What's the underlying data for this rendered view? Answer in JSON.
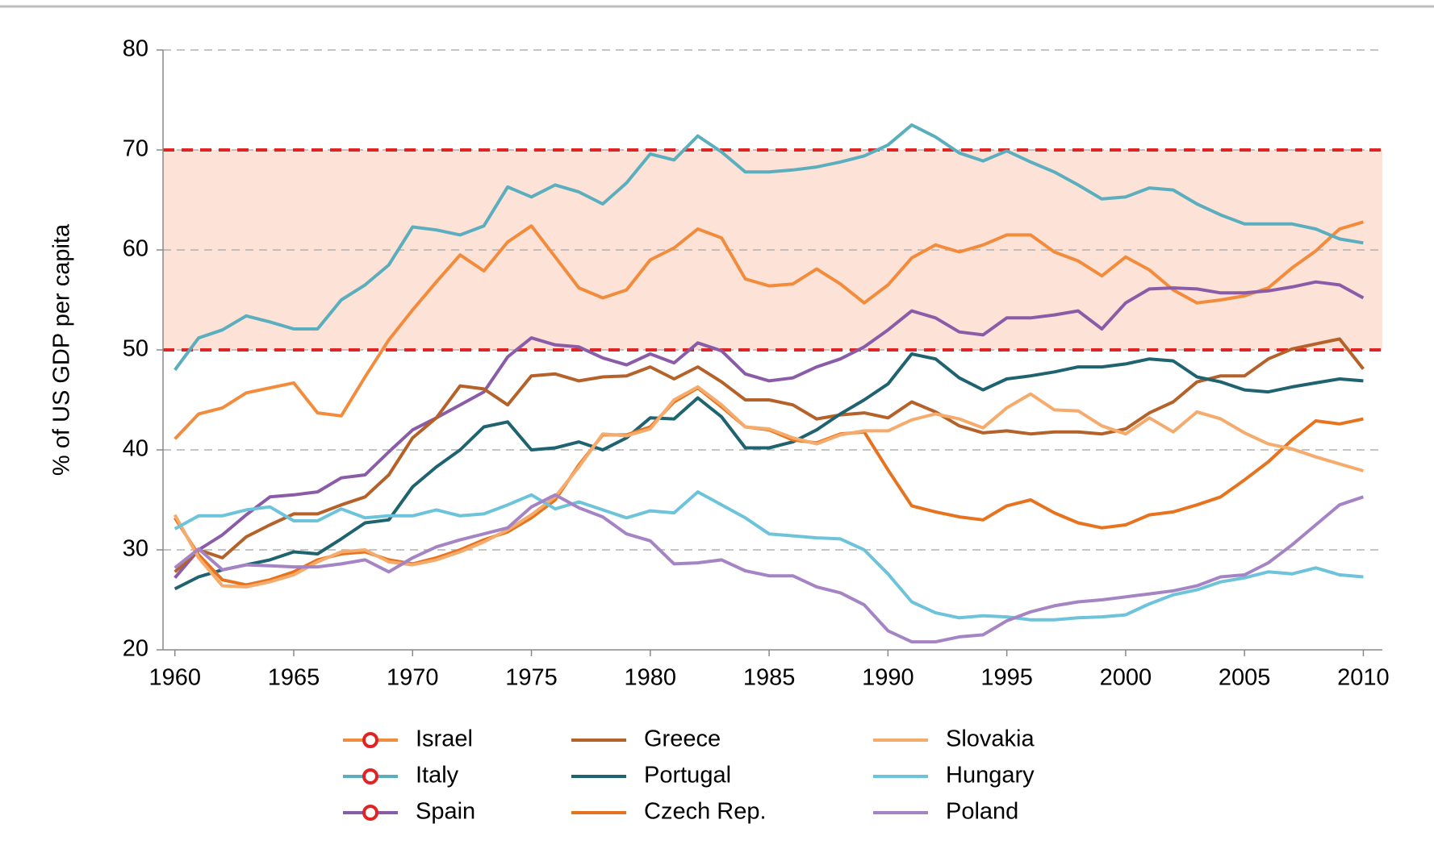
{
  "chart_data": {
    "type": "line",
    "y_label": "% of US GDP per capita",
    "x": [
      1960,
      1961,
      1962,
      1963,
      1964,
      1965,
      1966,
      1967,
      1968,
      1969,
      1970,
      1971,
      1972,
      1973,
      1974,
      1975,
      1976,
      1977,
      1978,
      1979,
      1980,
      1981,
      1982,
      1983,
      1984,
      1985,
      1986,
      1987,
      1988,
      1989,
      1990,
      1991,
      1992,
      1993,
      1994,
      1995,
      1996,
      1997,
      1998,
      1999,
      2000,
      2001,
      2002,
      2003,
      2004,
      2005,
      2006,
      2007,
      2008,
      2009,
      2010
    ],
    "xlim": [
      1959.5,
      2010.8
    ],
    "xticks": [
      1960,
      1965,
      1970,
      1975,
      1980,
      1985,
      1990,
      1995,
      2000,
      2005,
      2010
    ],
    "ylim": [
      20,
      80
    ],
    "yticks": [
      20,
      30,
      40,
      50,
      60,
      70,
      80
    ],
    "grid": true,
    "shaded_range": [
      50,
      70
    ],
    "shaded_color": "#fde2d7",
    "range_line_color": "#e02424",
    "legend_position": "bottom",
    "series": [
      {
        "name": "Israel",
        "color": "#f28c3c",
        "marker": "circle",
        "values": [
          41.1,
          43.6,
          44.2,
          45.7,
          46.2,
          46.7,
          43.7,
          43.4,
          47.3,
          51,
          54,
          56.8,
          59.5,
          57.9,
          60.8,
          62.4,
          59.3,
          56.2,
          55.2,
          56,
          59,
          60.2,
          62.1,
          61.2,
          57.1,
          56.4,
          56.6,
          58.1,
          56.6,
          54.7,
          56.5,
          59.2,
          60.5,
          59.8,
          60.5,
          61.5,
          61.5,
          59.8,
          58.9,
          57.4,
          59.3,
          58,
          56,
          54.7,
          55,
          55.4,
          56.2,
          58.2,
          59.9,
          62.1,
          62.8
        ]
      },
      {
        "name": "Italy",
        "color": "#5aaebd",
        "marker": "circle",
        "values": [
          48,
          51.2,
          52,
          53.4,
          52.8,
          52.1,
          52.1,
          55,
          56.5,
          58.5,
          62.3,
          62,
          61.5,
          62.4,
          66.3,
          65.3,
          66.5,
          65.8,
          64.6,
          66.7,
          69.6,
          69,
          71.4,
          69.8,
          67.8,
          67.8,
          68,
          68.3,
          68.8,
          69.4,
          70.5,
          72.5,
          71.3,
          69.7,
          68.9,
          69.9,
          68.8,
          67.8,
          66.5,
          65.1,
          65.3,
          66.2,
          66,
          64.6,
          63.5,
          62.6,
          62.6,
          62.6,
          62.1,
          61.1,
          60.7
        ]
      },
      {
        "name": "Spain",
        "color": "#8a5ca8",
        "marker": "circle",
        "values": [
          27.2,
          30,
          31.5,
          33.5,
          35.3,
          35.5,
          35.8,
          37.2,
          37.5,
          39.8,
          42,
          43.2,
          44.5,
          45.8,
          49.3,
          51.2,
          50.5,
          50.3,
          49.2,
          48.5,
          49.6,
          48.7,
          50.7,
          49.9,
          47.6,
          46.9,
          47.2,
          48.3,
          49.1,
          50.3,
          52,
          53.9,
          53.2,
          51.8,
          51.5,
          53.2,
          53.2,
          53.5,
          53.9,
          52.1,
          54.7,
          56.1,
          56.2,
          56.1,
          55.7,
          55.7,
          55.9,
          56.3,
          56.8,
          56.5,
          55.2
        ]
      },
      {
        "name": "Greece",
        "color": "#b5622a",
        "values": [
          27.8,
          30,
          29.2,
          31.3,
          32.5,
          33.6,
          33.6,
          34.5,
          35.3,
          37.5,
          41.2,
          43.2,
          46.4,
          46.1,
          44.5,
          47.4,
          47.6,
          46.9,
          47.3,
          47.4,
          48.3,
          47.1,
          48.3,
          46.8,
          45,
          45,
          44.5,
          43.1,
          43.5,
          43.7,
          43.2,
          44.8,
          43.8,
          42.4,
          41.7,
          41.9,
          41.6,
          41.8,
          41.8,
          41.6,
          42.1,
          43.7,
          44.8,
          46.8,
          47.4,
          47.4,
          49.1,
          50.1,
          50.6,
          51.1,
          48.1
        ]
      },
      {
        "name": "Portugal",
        "color": "#1f6270",
        "values": [
          26.1,
          27.3,
          28,
          28.5,
          29,
          29.8,
          29.6,
          31.1,
          32.7,
          33,
          36.3,
          38.3,
          40,
          42.3,
          42.8,
          40,
          40.2,
          40.8,
          40,
          41.2,
          43.2,
          43.1,
          45.2,
          43.3,
          40.2,
          40.2,
          40.8,
          42,
          43.6,
          45,
          46.6,
          49.6,
          49.1,
          47.2,
          46,
          47.1,
          47.4,
          47.8,
          48.3,
          48.3,
          48.6,
          49.1,
          48.9,
          47.3,
          46.8,
          46,
          45.8,
          46.3,
          46.7,
          47.1,
          46.9
        ]
      },
      {
        "name": "Czech Rep.",
        "color": "#e8731e",
        "values": [
          33.2,
          29.5,
          27,
          26.5,
          27,
          27.8,
          29,
          29.6,
          29.8,
          29,
          28.6,
          29.2,
          30,
          31,
          31.8,
          33.2,
          35,
          38.5,
          41.5,
          41.5,
          42.3,
          44.8,
          46.2,
          44.3,
          42.3,
          42,
          41,
          40.7,
          41.6,
          41.8,
          38,
          34.4,
          33.8,
          33.3,
          33,
          34.4,
          35,
          33.7,
          32.7,
          32.2,
          32.5,
          33.5,
          33.8,
          34.5,
          35.3,
          37,
          38.8,
          41,
          42.9,
          42.6,
          43.1
        ]
      },
      {
        "name": "Slovakia",
        "color": "#f5ab6c",
        "values": [
          33.5,
          29.2,
          26.4,
          26.3,
          26.8,
          27.5,
          28.8,
          29.8,
          30,
          28.8,
          28.5,
          29,
          29.8,
          30.8,
          32,
          33.5,
          35.3,
          38.3,
          41.6,
          41.4,
          42.1,
          45,
          46.3,
          44.5,
          42.3,
          42.1,
          41.2,
          40.6,
          41.5,
          41.9,
          41.9,
          43,
          43.6,
          43.1,
          42.2,
          44.2,
          45.6,
          44,
          43.9,
          42.4,
          41.6,
          43.2,
          41.8,
          43.8,
          43.1,
          41.7,
          40.6,
          40.1,
          39.3,
          38.6,
          37.9
        ]
      },
      {
        "name": "Hungary",
        "color": "#6cc3da",
        "values": [
          32.1,
          33.4,
          33.4,
          34,
          34.3,
          32.9,
          32.9,
          34.1,
          33.2,
          33.4,
          33.4,
          34,
          33.4,
          33.6,
          34.5,
          35.5,
          34.1,
          34.8,
          34,
          33.2,
          33.9,
          33.7,
          35.8,
          34.5,
          33.2,
          31.6,
          31.4,
          31.2,
          31.1,
          30,
          27.6,
          24.8,
          23.7,
          23.2,
          23.4,
          23.3,
          23,
          23,
          23.2,
          23.3,
          23.5,
          24.6,
          25.5,
          26,
          26.8,
          27.2,
          27.8,
          27.6,
          28.2,
          27.5,
          27.3
        ]
      },
      {
        "name": "Poland",
        "color": "#a584c4",
        "values": [
          28.2,
          30.1,
          28,
          28.5,
          28.4,
          28.3,
          28.3,
          28.6,
          29,
          27.8,
          29.2,
          30.3,
          31,
          31.6,
          32.2,
          34.3,
          35.5,
          34.2,
          33.3,
          31.6,
          30.9,
          28.6,
          28.7,
          29,
          27.9,
          27.4,
          27.4,
          26.3,
          25.7,
          24.5,
          21.9,
          20.8,
          20.8,
          21.3,
          21.5,
          22.9,
          23.8,
          24.4,
          24.8,
          25,
          25.3,
          25.6,
          25.9,
          26.4,
          27.3,
          27.5,
          28.7,
          30.5,
          32.5,
          34.5,
          35.3
        ]
      }
    ]
  }
}
